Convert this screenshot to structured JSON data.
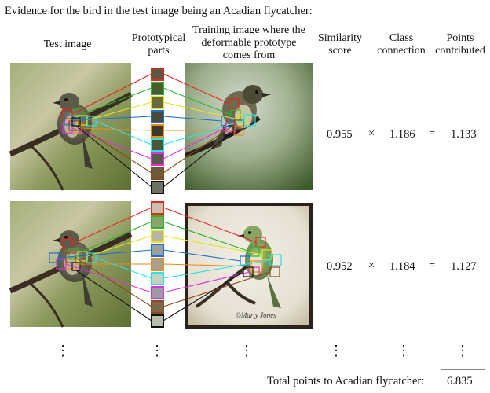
{
  "title": "Evidence for the bird in the test image being an Acadian flycatcher:",
  "headers": {
    "test_image": "Test image",
    "prototypical_parts": "Prototypical parts",
    "training_image": "Training image where the deformable prototype comes from",
    "similarity": "Similarity score",
    "class_connection": "Class connection",
    "points": "Points contributed"
  },
  "rows": [
    {
      "similarity": "0.955",
      "times": "×",
      "connection": "1.186",
      "equals": "=",
      "points": "1.133"
    },
    {
      "similarity": "0.952",
      "times": "×",
      "connection": "1.184",
      "equals": "=",
      "points": "1.127"
    }
  ],
  "ellipsis": "⋮",
  "signature": "©Marty Jones",
  "total": {
    "label": "Total points to Acadian flycatcher:",
    "value": "6.835"
  },
  "colors": {
    "arrows": [
      "#e8251f",
      "#2ab52a",
      "#e7e21b",
      "#1b6fd0",
      "#f08a12",
      "#25e3e7",
      "#e02fe0",
      "#8a4a1a",
      "#111111"
    ]
  }
}
